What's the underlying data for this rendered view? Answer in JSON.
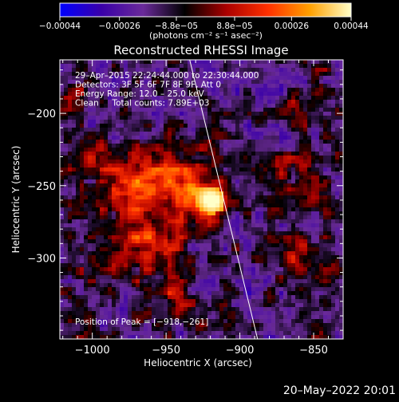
{
  "chart_data": {
    "type": "heatmap",
    "title": "Reconstructed RHESSI Image",
    "xlabel": "Heliocentric X (arcsec)",
    "ylabel": "Heliocentric Y (arcsec)",
    "xlim": [
      -1022,
      -830
    ],
    "ylim": [
      -356,
      -163
    ],
    "x_ticks": [
      -1000,
      -950,
      -900,
      -850
    ],
    "y_ticks": [
      -200,
      -250,
      -300
    ],
    "x_tick_labels": [
      "−1000",
      "−950",
      "−900",
      "−850"
    ],
    "y_tick_labels": [
      "−200",
      "−250",
      "−300"
    ],
    "colorbar": {
      "range": [
        -0.00044,
        0.00044
      ],
      "ticks": [
        -0.00044,
        -0.00026,
        -8.8e-05,
        8.8e-05,
        0.00026,
        0.00044
      ],
      "tick_labels": [
        "−0.00044",
        "−0.00026",
        "−8.8e−05",
        "8.8e−05",
        "0.00026",
        "0.00044"
      ],
      "units": "(photons cm⁻² s⁻¹ asec⁻²)",
      "colormap": [
        "#0000ff",
        "#3a00a8",
        "#6a2a9a",
        "#000000",
        "#aa0000",
        "#ff3000",
        "#ffa000",
        "#ffffc8"
      ]
    },
    "annotations": [
      "29–Apr–2015 22:24:44.000 to 22:30:44.000",
      "Detectors: 3F 5F 6F 7F 8F 9F, Att 0",
      "Energy Range: 12.0 – 25.0 keV",
      "Clean     Total counts: 7.89E+03"
    ],
    "peak_label": "Position of Peak = [−918,−261]",
    "peak": [
      -918,
      -261
    ],
    "peak_value": 0.00044,
    "limb_line": [
      [
        -934,
        -163
      ],
      [
        -888,
        -356
      ]
    ],
    "sources": [
      {
        "x": -918,
        "y": -261,
        "amp": 1.0,
        "sigma": 9
      },
      {
        "x": -940,
        "y": -245,
        "amp": 0.55,
        "sigma": 14
      },
      {
        "x": -965,
        "y": -270,
        "amp": 0.5,
        "sigma": 18
      },
      {
        "x": -975,
        "y": -245,
        "amp": 0.35,
        "sigma": 14
      },
      {
        "x": -955,
        "y": -300,
        "amp": 0.35,
        "sigma": 14
      },
      {
        "x": -945,
        "y": -330,
        "amp": 0.3,
        "sigma": 12
      },
      {
        "x": -1005,
        "y": -225,
        "amp": 0.28,
        "sigma": 12
      },
      {
        "x": -990,
        "y": -300,
        "amp": 0.25,
        "sigma": 14
      },
      {
        "x": -870,
        "y": -240,
        "amp": 0.3,
        "sigma": 15
      },
      {
        "x": -860,
        "y": -300,
        "amp": 0.3,
        "sigma": 14
      },
      {
        "x": -855,
        "y": -195,
        "amp": 0.22,
        "sigma": 12
      },
      {
        "x": -1012,
        "y": -190,
        "amp": 0.3,
        "sigma": 8
      },
      {
        "x": -1010,
        "y": -340,
        "amp": 0.22,
        "sigma": 10
      }
    ],
    "grid": false,
    "timestamp": "20–May–2022 20:01"
  }
}
